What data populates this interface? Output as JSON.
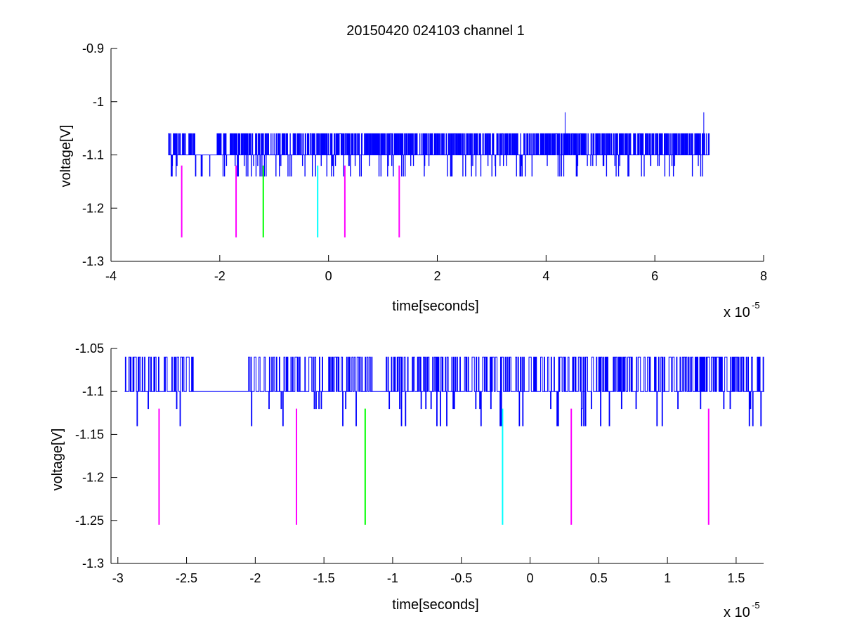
{
  "chart_data": [
    {
      "type": "line",
      "title": "20150420 024103 channel 1",
      "xlabel": "time[seconds]",
      "ylabel": "voltage[V]",
      "x_exponent_base": "x 10",
      "x_exponent_power": "-5",
      "xlim": [
        -4,
        8
      ],
      "ylim": [
        -1.3,
        -0.9
      ],
      "xticks": [
        -4,
        -2,
        0,
        2,
        4,
        6,
        8
      ],
      "xtick_labels": [
        "-4",
        "-2",
        "0",
        "2",
        "4",
        "6",
        "8"
      ],
      "yticks": [
        -1.3,
        -1.2,
        -1.1,
        -1.0,
        -0.9
      ],
      "ytick_labels": [
        "-1.3",
        "-1.2",
        "-1.1",
        "-1",
        "-0.9"
      ],
      "signal": {
        "color": "#0000ff",
        "x_range": [
          -2.95,
          7.0
        ],
        "baseline": -1.1,
        "levels": [
          -1.06,
          -1.1,
          -1.14
        ],
        "spikes": [
          {
            "x": 4.35,
            "y": -1.02
          },
          {
            "x": 6.9,
            "y": -1.02
          }
        ]
      },
      "markers": [
        {
          "x": -2.7,
          "y0": -1.12,
          "y1": -1.255,
          "color": "#ff00ff"
        },
        {
          "x": -1.7,
          "y0": -1.12,
          "y1": -1.255,
          "color": "#ff00ff"
        },
        {
          "x": -1.2,
          "y0": -1.12,
          "y1": -1.255,
          "color": "#00ff00"
        },
        {
          "x": -0.2,
          "y0": -1.12,
          "y1": -1.255,
          "color": "#00ffff"
        },
        {
          "x": 0.3,
          "y0": -1.12,
          "y1": -1.255,
          "color": "#ff00ff"
        },
        {
          "x": 1.3,
          "y0": -1.12,
          "y1": -1.255,
          "color": "#ff00ff"
        }
      ],
      "grid": false
    },
    {
      "type": "line",
      "title": "",
      "xlabel": "time[seconds]",
      "ylabel": "voltage[V]",
      "x_exponent_base": "x 10",
      "x_exponent_power": "-5",
      "xlim": [
        -3.05,
        1.7
      ],
      "ylim": [
        -1.3,
        -1.05
      ],
      "xticks": [
        -3,
        -2.5,
        -2,
        -1.5,
        -1,
        -0.5,
        0,
        0.5,
        1,
        1.5
      ],
      "xtick_labels": [
        "-3",
        "-2.5",
        "-2",
        "-1.5",
        "-1",
        "-0.5",
        "0",
        "0.5",
        "1",
        "1.5"
      ],
      "yticks": [
        -1.3,
        -1.25,
        -1.2,
        -1.15,
        -1.1,
        -1.05
      ],
      "ytick_labels": [
        "-1.3",
        "-1.25",
        "-1.2",
        "-1.15",
        "-1.1",
        "-1.05"
      ],
      "signal": {
        "color": "#0000ff",
        "x_range": [
          -2.95,
          1.7
        ],
        "baseline": -1.1,
        "levels": [
          -1.06,
          -1.1,
          -1.14
        ],
        "spikes": []
      },
      "markers": [
        {
          "x": -2.7,
          "y0": -1.12,
          "y1": -1.255,
          "color": "#ff00ff"
        },
        {
          "x": -1.7,
          "y0": -1.12,
          "y1": -1.255,
          "color": "#ff00ff"
        },
        {
          "x": -1.2,
          "y0": -1.12,
          "y1": -1.255,
          "color": "#00ff00"
        },
        {
          "x": -0.2,
          "y0": -1.12,
          "y1": -1.255,
          "color": "#00ffff"
        },
        {
          "x": 0.3,
          "y0": -1.12,
          "y1": -1.255,
          "color": "#ff00ff"
        },
        {
          "x": 1.3,
          "y0": -1.12,
          "y1": -1.255,
          "color": "#ff00ff"
        }
      ],
      "grid": false
    }
  ]
}
